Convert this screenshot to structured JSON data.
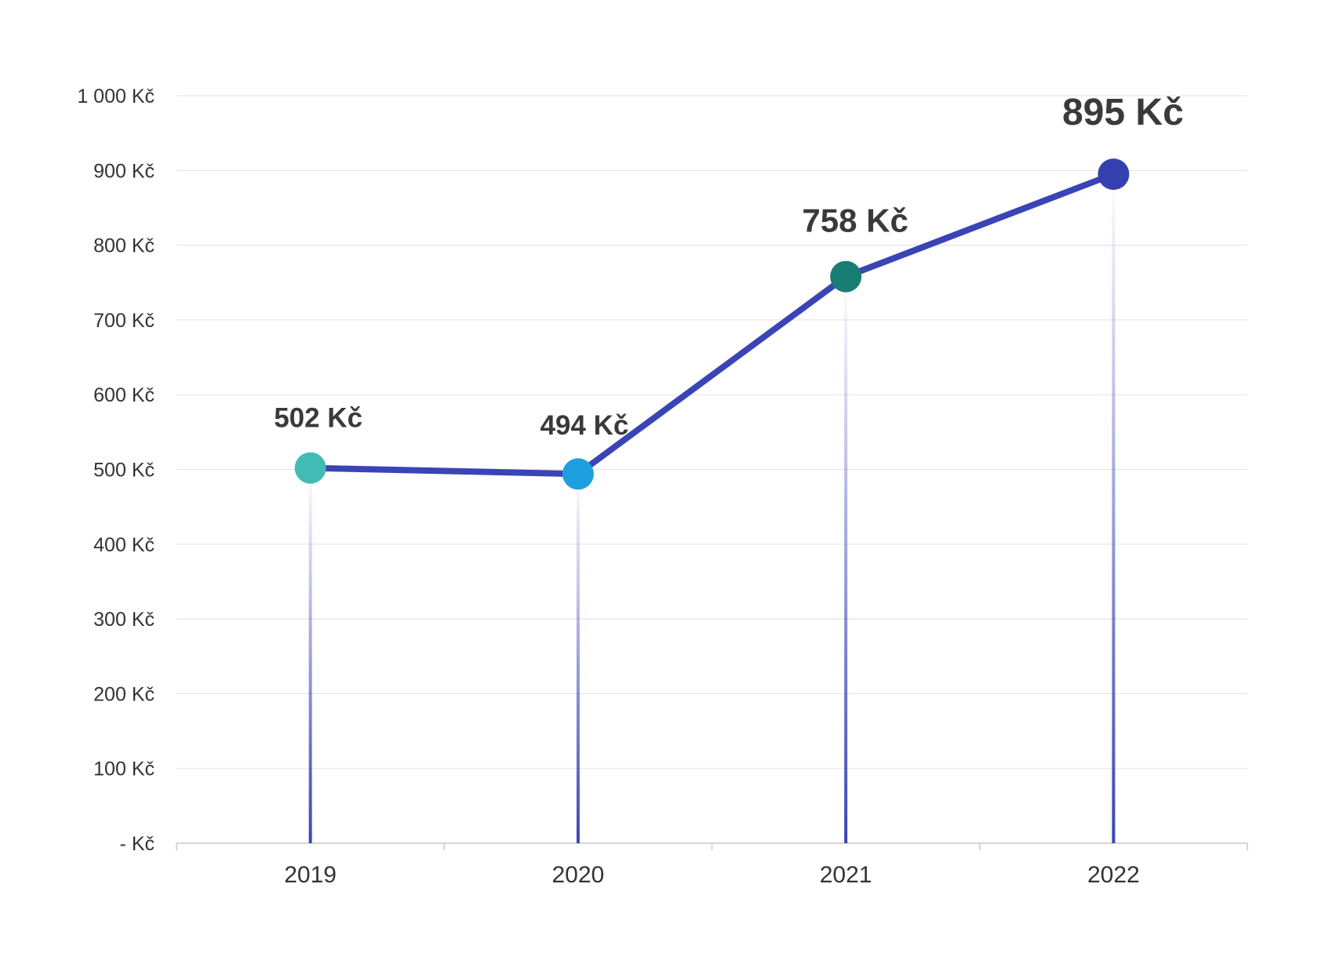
{
  "chart_data": {
    "type": "line",
    "title": "",
    "xlabel": "",
    "ylabel": "",
    "categories": [
      "2019",
      "2020",
      "2021",
      "2022"
    ],
    "series": [
      {
        "values": [
          502,
          494,
          758,
          895
        ],
        "data_labels": [
          "502 Kč",
          "494 Kč",
          "758 Kč",
          "895 Kč"
        ],
        "line_color": "#3a44b5",
        "point_colors": [
          "#41bbb3",
          "#1fa0de",
          "#1a7d74",
          "#3540b0"
        ]
      }
    ],
    "ylim": [
      0,
      1000
    ],
    "yticks": [
      0,
      100,
      200,
      300,
      400,
      500,
      600,
      700,
      800,
      900,
      1000
    ],
    "ytick_labels": [
      "-  Kč",
      "100 Kč",
      "200 Kč",
      "300 Kč",
      "400 Kč",
      "500 Kč",
      "600 Kč",
      "700 Kč",
      "800 Kč",
      "900 Kč",
      "1 000 Kč"
    ],
    "grid": true,
    "legend": "none",
    "drop_lines": true,
    "drop_line_color": "#3a44b5"
  }
}
